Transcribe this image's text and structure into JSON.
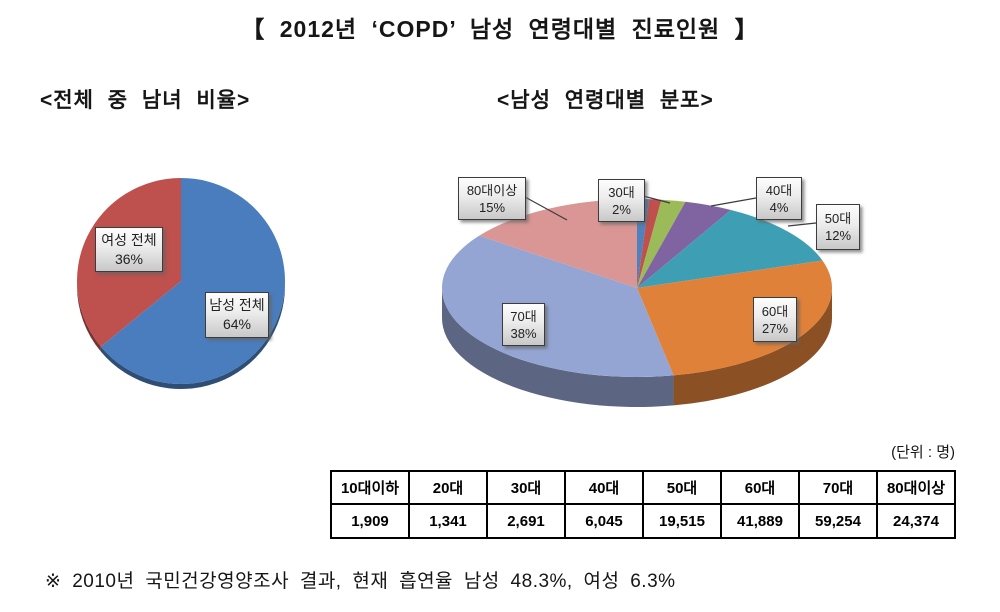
{
  "title": "【 2012년 ‘COPD’ 남성 연령대별 진료인원 】",
  "left_section": {
    "subtitle": "<전체 중 남녀 비율>"
  },
  "right_section": {
    "subtitle": "<남성 연령대별 분포>"
  },
  "unit_label": "(단위 : 명)",
  "footnote": "※ 2010년 국민건강영양조사 결과, 현재 흡연율 남성 48.3%, 여성 6.3%",
  "chart_data": [
    {
      "type": "pie",
      "title": "<전체 중 남녀 비율>",
      "labels": [
        "남성 전체",
        "여성 전체"
      ],
      "values": [
        64,
        36
      ],
      "unit": "%",
      "start_angle_deg": 0,
      "direction": "clockwise",
      "colors": [
        "#4A7DBD",
        "#BE504D"
      ],
      "callouts": [
        {
          "label": "여성 전체",
          "value": "36%"
        },
        {
          "label": "남성 전체",
          "value": "64%"
        }
      ]
    },
    {
      "type": "pie",
      "style": "3d",
      "title": "<남성 연령대별 분포>",
      "labels": [
        "10대이하",
        "20대",
        "30대",
        "40대",
        "50대",
        "60대",
        "70대",
        "80대이상"
      ],
      "values": [
        1,
        1,
        2,
        4,
        12,
        27,
        38,
        15
      ],
      "unit": "%",
      "counts": [
        1909,
        1341,
        2691,
        6045,
        19515,
        41889,
        59254,
        24374
      ],
      "start_angle_deg": 0,
      "direction": "clockwise",
      "colors": [
        "#4F81BD",
        "#C0504D",
        "#9BBB59",
        "#8064A2",
        "#3E9FB4",
        "#E0813A",
        "#95A5D3",
        "#D99694"
      ],
      "callouts": [
        {
          "label": "80대이상",
          "value": "15%"
        },
        {
          "label": "30대",
          "value": "2%"
        },
        {
          "label": "40대",
          "value": "4%"
        },
        {
          "label": "50대",
          "value": "12%"
        },
        {
          "label": "60대",
          "value": "27%"
        },
        {
          "label": "70대",
          "value": "38%"
        }
      ]
    }
  ],
  "table": {
    "unit": "(단위 : 명)",
    "headers": [
      "10대이하",
      "20대",
      "30대",
      "40대",
      "50대",
      "60대",
      "70대",
      "80대이상"
    ],
    "values": [
      "1,909",
      "1,341",
      "2,691",
      "6,045",
      "19,515",
      "41,889",
      "59,254",
      "24,374"
    ]
  }
}
